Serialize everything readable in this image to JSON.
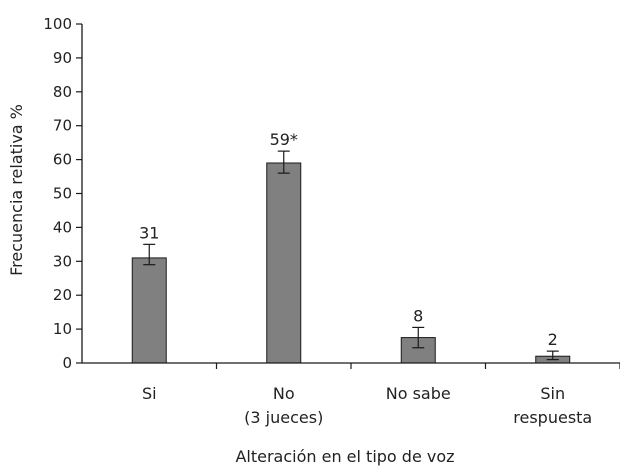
{
  "chart_data": {
    "type": "bar",
    "categories": [
      [
        "Si"
      ],
      [
        "No",
        "(3 jueces)"
      ],
      [
        "No sabe"
      ],
      [
        "Sin",
        "respuesta"
      ]
    ],
    "values": [
      31,
      59,
      7.5,
      2
    ],
    "data_labels": [
      "31",
      "59*",
      "8",
      "2"
    ],
    "error_bars": [
      [
        29,
        35
      ],
      [
        56,
        62.5
      ],
      [
        4.5,
        10.5
      ],
      [
        1,
        3.5
      ]
    ],
    "xlabel": "Alteración en el tipo de voz",
    "ylabel": "Frecuencia relativa %",
    "ylim": [
      0,
      100
    ],
    "yticks": [
      "0",
      "10",
      "20",
      "30",
      "40",
      "50",
      "60",
      "70",
      "80",
      "90",
      "100"
    ],
    "grid": false,
    "bar_color": "#808080",
    "bar_edge_color": "#1a1a1a",
    "axis_color": "#1a1a1a"
  }
}
